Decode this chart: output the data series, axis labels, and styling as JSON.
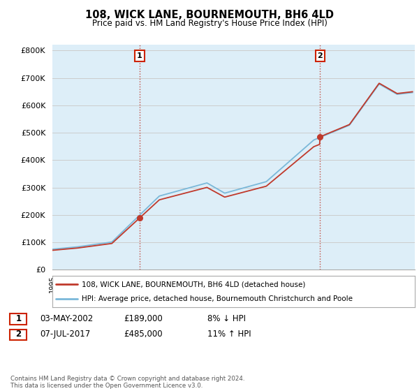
{
  "title": "108, WICK LANE, BOURNEMOUTH, BH6 4LD",
  "subtitle": "Price paid vs. HM Land Registry's House Price Index (HPI)",
  "ylabel_ticks": [
    "£0",
    "£100K",
    "£200K",
    "£300K",
    "£400K",
    "£500K",
    "£600K",
    "£700K",
    "£800K"
  ],
  "ylim": [
    0,
    820000
  ],
  "xlim_start": 1995.0,
  "xlim_end": 2025.5,
  "purchase1_x": 2002.34,
  "purchase1_y": 189000,
  "purchase1_label": "1",
  "purchase2_x": 2017.52,
  "purchase2_y": 485000,
  "purchase2_label": "2",
  "hpi_color": "#7ab8d9",
  "price_color": "#c0392b",
  "grid_color": "#cccccc",
  "bg_color": "#ddeef8",
  "legend_entries": [
    "108, WICK LANE, BOURNEMOUTH, BH6 4LD (detached house)",
    "HPI: Average price, detached house, Bournemouth Christchurch and Poole"
  ],
  "table_rows": [
    {
      "label": "1",
      "date": "03-MAY-2002",
      "price": "£189,000",
      "hpi": "8% ↓ HPI"
    },
    {
      "label": "2",
      "date": "07-JUL-2017",
      "price": "£485,000",
      "hpi": "11% ↑ HPI"
    }
  ],
  "footnote": "Contains HM Land Registry data © Crown copyright and database right 2024.\nThis data is licensed under the Open Government Licence v3.0."
}
